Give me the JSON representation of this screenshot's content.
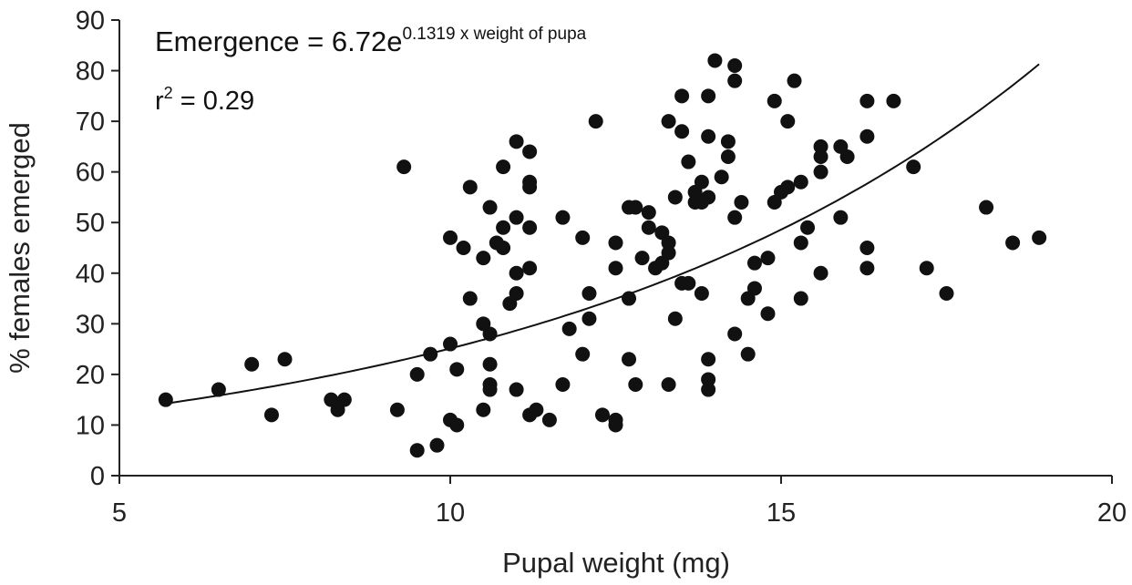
{
  "chart_data": {
    "type": "scatter",
    "xlabel": "Pupal weight (mg)",
    "ylabel": "% females emerged",
    "xlim": [
      5,
      20
    ],
    "ylim": [
      0,
      90
    ],
    "xticks": [
      "5",
      "10",
      "15",
      "20"
    ],
    "yticks": [
      "0",
      "10",
      "20",
      "30",
      "40",
      "50",
      "60",
      "70",
      "80",
      "90"
    ],
    "grid": false,
    "annotations": {
      "equation_prefix": "Emergence = 6.72e",
      "equation_exponent": "0.1319 x weight of pupa",
      "r2_prefix": "r",
      "r2_sup": "2",
      "r2_value": " = 0.29"
    },
    "fit": {
      "a": 6.72,
      "b": 0.1319,
      "x_range": [
        5.7,
        18.9
      ]
    },
    "points": [
      [
        5.7,
        15
      ],
      [
        6.5,
        17
      ],
      [
        7.0,
        22
      ],
      [
        7.3,
        12
      ],
      [
        7.5,
        23
      ],
      [
        8.2,
        15
      ],
      [
        8.3,
        13
      ],
      [
        8.4,
        15
      ],
      [
        9.2,
        13
      ],
      [
        9.3,
        61
      ],
      [
        9.5,
        20
      ],
      [
        9.5,
        5
      ],
      [
        9.7,
        24
      ],
      [
        9.8,
        6
      ],
      [
        10.0,
        47
      ],
      [
        10.0,
        26
      ],
      [
        10.0,
        11
      ],
      [
        10.1,
        21
      ],
      [
        10.1,
        10
      ],
      [
        10.2,
        45
      ],
      [
        10.3,
        57
      ],
      [
        10.3,
        35
      ],
      [
        10.5,
        43
      ],
      [
        10.5,
        30
      ],
      [
        10.5,
        13
      ],
      [
        10.6,
        53
      ],
      [
        10.6,
        28
      ],
      [
        10.6,
        22
      ],
      [
        10.6,
        18
      ],
      [
        10.6,
        17
      ],
      [
        10.7,
        46
      ],
      [
        10.8,
        61
      ],
      [
        10.8,
        49
      ],
      [
        10.8,
        45
      ],
      [
        10.9,
        34
      ],
      [
        11.0,
        66
      ],
      [
        11.0,
        51
      ],
      [
        11.0,
        40
      ],
      [
        11.0,
        36
      ],
      [
        11.0,
        17
      ],
      [
        11.2,
        64
      ],
      [
        11.2,
        58
      ],
      [
        11.2,
        57
      ],
      [
        11.2,
        49
      ],
      [
        11.2,
        41
      ],
      [
        11.2,
        12
      ],
      [
        11.3,
        13
      ],
      [
        11.5,
        11
      ],
      [
        11.7,
        51
      ],
      [
        11.7,
        18
      ],
      [
        11.8,
        29
      ],
      [
        12.0,
        47
      ],
      [
        12.0,
        24
      ],
      [
        12.1,
        36
      ],
      [
        12.1,
        31
      ],
      [
        12.2,
        70
      ],
      [
        12.3,
        12
      ],
      [
        12.5,
        46
      ],
      [
        12.5,
        41
      ],
      [
        12.5,
        11
      ],
      [
        12.5,
        10
      ],
      [
        12.7,
        53
      ],
      [
        12.7,
        35
      ],
      [
        12.7,
        23
      ],
      [
        12.8,
        53
      ],
      [
        12.8,
        18
      ],
      [
        12.9,
        43
      ],
      [
        13.0,
        52
      ],
      [
        13.0,
        49
      ],
      [
        13.1,
        41
      ],
      [
        13.2,
        48
      ],
      [
        13.2,
        42
      ],
      [
        13.3,
        70
      ],
      [
        13.3,
        46
      ],
      [
        13.3,
        44
      ],
      [
        13.3,
        18
      ],
      [
        13.4,
        55
      ],
      [
        13.4,
        31
      ],
      [
        13.5,
        75
      ],
      [
        13.5,
        68
      ],
      [
        13.5,
        38
      ],
      [
        13.6,
        62
      ],
      [
        13.6,
        38
      ],
      [
        13.7,
        56
      ],
      [
        13.7,
        54
      ],
      [
        13.8,
        58
      ],
      [
        13.8,
        54
      ],
      [
        13.8,
        36
      ],
      [
        13.9,
        75
      ],
      [
        13.9,
        67
      ],
      [
        13.9,
        55
      ],
      [
        13.9,
        23
      ],
      [
        13.9,
        19
      ],
      [
        13.9,
        17
      ],
      [
        14.0,
        82
      ],
      [
        14.1,
        59
      ],
      [
        14.2,
        66
      ],
      [
        14.2,
        63
      ],
      [
        14.3,
        81
      ],
      [
        14.3,
        78
      ],
      [
        14.3,
        51
      ],
      [
        14.3,
        28
      ],
      [
        14.4,
        54
      ],
      [
        14.5,
        35
      ],
      [
        14.5,
        24
      ],
      [
        14.6,
        42
      ],
      [
        14.6,
        37
      ],
      [
        14.8,
        43
      ],
      [
        14.8,
        32
      ],
      [
        14.9,
        74
      ],
      [
        14.9,
        54
      ],
      [
        15.0,
        56
      ],
      [
        15.1,
        70
      ],
      [
        15.1,
        57
      ],
      [
        15.2,
        78
      ],
      [
        15.3,
        58
      ],
      [
        15.3,
        46
      ],
      [
        15.3,
        35
      ],
      [
        15.4,
        49
      ],
      [
        15.6,
        65
      ],
      [
        15.6,
        63
      ],
      [
        15.6,
        60
      ],
      [
        15.6,
        40
      ],
      [
        15.9,
        65
      ],
      [
        15.9,
        51
      ],
      [
        16.0,
        63
      ],
      [
        16.3,
        74
      ],
      [
        16.3,
        67
      ],
      [
        16.3,
        45
      ],
      [
        16.3,
        41
      ],
      [
        16.7,
        74
      ],
      [
        17.0,
        61
      ],
      [
        17.2,
        41
      ],
      [
        17.5,
        36
      ],
      [
        18.1,
        53
      ],
      [
        18.5,
        46
      ],
      [
        18.9,
        47
      ]
    ]
  }
}
